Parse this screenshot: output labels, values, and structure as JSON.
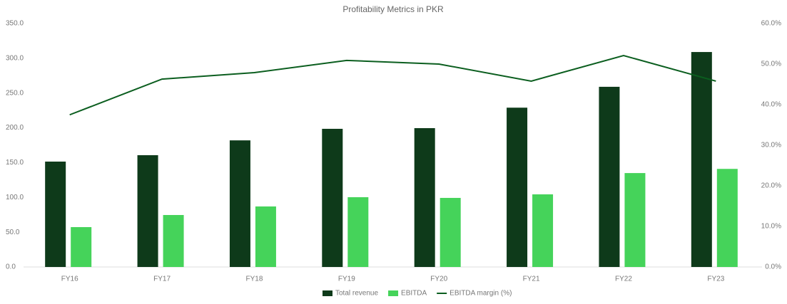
{
  "chart_data": {
    "type": "bar-line",
    "title": "Profitability Metrics in PKR",
    "categories": [
      "FY16",
      "FY17",
      "FY18",
      "FY19",
      "FY20",
      "FY21",
      "FY22",
      "FY23"
    ],
    "series": [
      {
        "name": "Total revenue",
        "color": "#0e3a1a",
        "type": "bar",
        "values": [
          151.5,
          160.7,
          182,
          198.6,
          199.6,
          229,
          259,
          309
        ]
      },
      {
        "name": "EBITDA",
        "color": "#45d35a",
        "type": "bar",
        "values": [
          57.3,
          74.7,
          87,
          100.3,
          99.3,
          104.4,
          135,
          141
        ]
      },
      {
        "name": "EBITDA margin (%)",
        "color": "#0b5e1f",
        "type": "line",
        "axis": "y2",
        "values": [
          37.5,
          46.3,
          47.9,
          50.9,
          50,
          45.8,
          52.1,
          45.8
        ]
      }
    ],
    "ylim": [
      0,
      350
    ],
    "yticks": [
      {
        "value": 0,
        "label": "0.0"
      },
      {
        "value": 50,
        "label": "50.0"
      },
      {
        "value": 100,
        "label": "100.0"
      },
      {
        "value": 150,
        "label": "150.0"
      },
      {
        "value": 200,
        "label": "200.0"
      },
      {
        "value": 250,
        "label": "250.0"
      },
      {
        "value": 300,
        "label": "300.0"
      },
      {
        "value": 350,
        "label": "350.0"
      }
    ],
    "y2lim": [
      0,
      60
    ],
    "y2ticks": [
      {
        "value": 0,
        "label": "0.0%"
      },
      {
        "value": 10,
        "label": "10.0%"
      },
      {
        "value": 20,
        "label": "20.0%"
      },
      {
        "value": 30,
        "label": "30.0%"
      },
      {
        "value": 40,
        "label": "40.0%"
      },
      {
        "value": 50,
        "label": "50.0%"
      },
      {
        "value": 60,
        "label": "60.0%"
      }
    ],
    "legend": "bottom"
  }
}
